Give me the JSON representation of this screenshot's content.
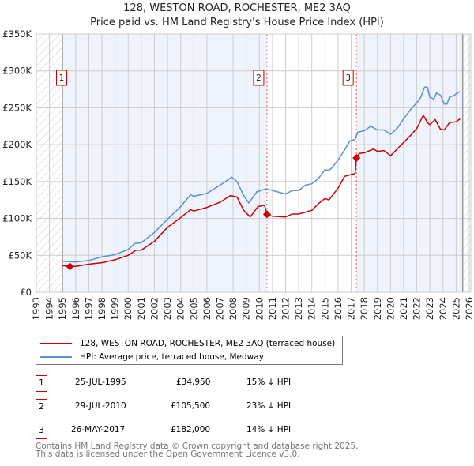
{
  "header": {
    "title": "128, WESTON ROAD, ROCHESTER, ME2 3AQ",
    "subtitle": "Price paid vs. HM Land Registry's House Price Index (HPI)"
  },
  "chart_data": {
    "type": "line",
    "title": "128, WESTON ROAD, ROCHESTER, ME2 3AQ",
    "subtitle": "Price paid vs. HM Land Registry's House Price Index (HPI)",
    "xlim": [
      1993,
      2026
    ],
    "ylim": [
      0,
      350000
    ],
    "x_ticks": [
      "1993",
      "1994",
      "1995",
      "1996",
      "1997",
      "1998",
      "1999",
      "2000",
      "2001",
      "2002",
      "2003",
      "2004",
      "2005",
      "2006",
      "2007",
      "2008",
      "2009",
      "2010",
      "2011",
      "2012",
      "2013",
      "2014",
      "2015",
      "2016",
      "2017",
      "2018",
      "2019",
      "2020",
      "2021",
      "2022",
      "2023",
      "2024",
      "2025",
      "2026"
    ],
    "y_ticks": [
      {
        "v": 0,
        "label": "£0"
      },
      {
        "v": 50000,
        "label": "£50K"
      },
      {
        "v": 100000,
        "label": "£100K"
      },
      {
        "v": 150000,
        "label": "£150K"
      },
      {
        "v": 200000,
        "label": "£200K"
      },
      {
        "v": 250000,
        "label": "£250K"
      },
      {
        "v": 300000,
        "label": "£300K"
      },
      {
        "v": 350000,
        "label": "£350K"
      }
    ],
    "grid": true,
    "data_range": [
      1995,
      2025.5
    ],
    "colors": {
      "property": "#cc0000",
      "hpi": "#5b8fd4",
      "band": "#eef3fc",
      "sale_line": "#ee5555"
    },
    "series": [
      {
        "name": "128, WESTON ROAD, ROCHESTER, ME2 3AQ (terraced house)",
        "key": "property",
        "points": [
          [
            1995,
            36
          ],
          [
            1995.56,
            34.95
          ],
          [
            1996,
            35
          ],
          [
            1997,
            38
          ],
          [
            1998,
            40
          ],
          [
            1999,
            44
          ],
          [
            2000,
            50
          ],
          [
            2000.6,
            57
          ],
          [
            2001,
            57
          ],
          [
            2002,
            69
          ],
          [
            2003,
            88
          ],
          [
            2004,
            101
          ],
          [
            2004.75,
            112
          ],
          [
            2005,
            110
          ],
          [
            2006,
            115
          ],
          [
            2007,
            122
          ],
          [
            2007.8,
            131
          ],
          [
            2008.3,
            129
          ],
          [
            2008.8,
            111
          ],
          [
            2009.3,
            102
          ],
          [
            2009.9,
            116
          ],
          [
            2010.4,
            118
          ],
          [
            2010.58,
            105.5
          ],
          [
            2011,
            103
          ],
          [
            2012,
            102
          ],
          [
            2012.5,
            106
          ],
          [
            2013,
            106
          ],
          [
            2014,
            111
          ],
          [
            2014.5,
            120
          ],
          [
            2015,
            127
          ],
          [
            2015.3,
            125
          ],
          [
            2016,
            141
          ],
          [
            2016.5,
            157
          ],
          [
            2017.3,
            161
          ],
          [
            2017.4,
            182
          ],
          [
            2017.6,
            188
          ],
          [
            2018,
            189
          ],
          [
            2018.7,
            194
          ],
          [
            2019,
            191
          ],
          [
            2019.5,
            192
          ],
          [
            2020,
            185
          ],
          [
            2020.5,
            194
          ],
          [
            2021,
            203
          ],
          [
            2021.5,
            212
          ],
          [
            2022,
            222
          ],
          [
            2022.5,
            240
          ],
          [
            2022.8,
            230
          ],
          [
            2023,
            227
          ],
          [
            2023.4,
            234
          ],
          [
            2023.8,
            221
          ],
          [
            2024.1,
            220
          ],
          [
            2024.5,
            230
          ],
          [
            2025,
            231
          ],
          [
            2025.3,
            235
          ]
        ]
      },
      {
        "name": "HPI: Average price, terraced house, Medway",
        "key": "hpi",
        "points": [
          [
            1995,
            42
          ],
          [
            1996,
            41
          ],
          [
            1997,
            43
          ],
          [
            1998,
            48
          ],
          [
            1999,
            51
          ],
          [
            2000,
            58
          ],
          [
            2000.5,
            66
          ],
          [
            2001,
            67
          ],
          [
            2002,
            81
          ],
          [
            2003,
            99
          ],
          [
            2004,
            116
          ],
          [
            2004.75,
            132
          ],
          [
            2005,
            130
          ],
          [
            2006,
            134
          ],
          [
            2007,
            145
          ],
          [
            2007.9,
            156
          ],
          [
            2008.3,
            150
          ],
          [
            2008.8,
            131
          ],
          [
            2009.2,
            121
          ],
          [
            2009.8,
            136
          ],
          [
            2010.5,
            140
          ],
          [
            2011,
            138
          ],
          [
            2012,
            133
          ],
          [
            2012.5,
            138
          ],
          [
            2013,
            138
          ],
          [
            2013.5,
            145
          ],
          [
            2014,
            147
          ],
          [
            2014.5,
            154
          ],
          [
            2015,
            166
          ],
          [
            2015.3,
            165
          ],
          [
            2015.5,
            168
          ],
          [
            2016,
            179
          ],
          [
            2016.5,
            193
          ],
          [
            2016.9,
            205
          ],
          [
            2017.3,
            207
          ],
          [
            2017.5,
            217
          ],
          [
            2018,
            219
          ],
          [
            2018.5,
            225
          ],
          [
            2019,
            220
          ],
          [
            2019.5,
            220
          ],
          [
            2020,
            214
          ],
          [
            2020.5,
            222
          ],
          [
            2021,
            235
          ],
          [
            2021.5,
            247
          ],
          [
            2022,
            257
          ],
          [
            2022.3,
            264
          ],
          [
            2022.6,
            278
          ],
          [
            2022.8,
            278
          ],
          [
            2023,
            264
          ],
          [
            2023.3,
            262
          ],
          [
            2023.5,
            270
          ],
          [
            2023.8,
            267
          ],
          [
            2024.1,
            255
          ],
          [
            2024.3,
            255
          ],
          [
            2024.5,
            265
          ],
          [
            2024.8,
            266
          ],
          [
            2025,
            269
          ],
          [
            2025.3,
            272
          ]
        ]
      }
    ],
    "points_unit": "thousand GBP",
    "sales": [
      {
        "n": "1",
        "x": 1995.56,
        "date": "25-JUL-1995",
        "price_value": 34950,
        "price": "£34,950",
        "hpi": "15% ↓ HPI"
      },
      {
        "n": "2",
        "x": 2010.58,
        "date": "29-JUL-2010",
        "price_value": 105500,
        "price": "£105,500",
        "hpi": "23% ↓ HPI"
      },
      {
        "n": "3",
        "x": 2017.4,
        "date": "26-MAY-2017",
        "price_value": 182000,
        "price": "£182,000",
        "hpi": "14% ↓ HPI"
      }
    ]
  },
  "legend": {
    "property": "128, WESTON ROAD, ROCHESTER, ME2 3AQ (terraced house)",
    "hpi": "HPI: Average price, terraced house, Medway"
  },
  "footer": {
    "line1": "Contains HM Land Registry data © Crown copyright and database right 2025.",
    "line2": "This data is licensed under the Open Government Licence v3.0."
  }
}
